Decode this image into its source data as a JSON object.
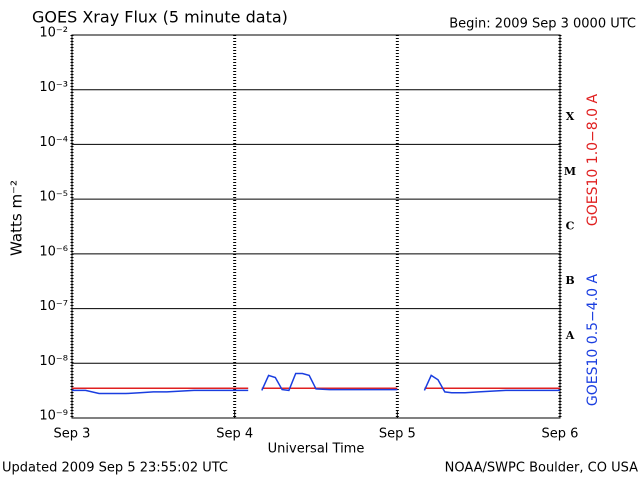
{
  "chart_data": {
    "type": "line",
    "title": "GOES Xray Flux (5 minute data)",
    "subtitle": "Begin:  2009 Sep 3 0000 UTC",
    "y_label": "Watts m⁻²",
    "x_label": "Universal Time",
    "footer_left": "Updated 2009 Sep  5 23:55:02 UTC",
    "footer_right": "NOAA/SWPC Boulder, CO USA",
    "log_y": true,
    "grid": true,
    "flare_class_labels": [
      "X",
      "M",
      "C",
      "B",
      "A"
    ],
    "xlim": [
      0,
      72
    ],
    "xticks": [
      {
        "value": 0,
        "label": "Sep 3"
      },
      {
        "value": 24,
        "label": "Sep 4"
      },
      {
        "value": 48,
        "label": "Sep 5"
      },
      {
        "value": 72,
        "label": "Sep 6"
      }
    ],
    "ylim": [
      1e-09,
      0.01
    ],
    "yticks": [
      {
        "value": 1e-09,
        "label": "10⁻⁹"
      },
      {
        "value": 1e-08,
        "label": "10⁻⁸"
      },
      {
        "value": 1e-07,
        "label": "10⁻⁷"
      },
      {
        "value": 1e-06,
        "label": "10⁻⁶"
      },
      {
        "value": 1e-05,
        "label": "10⁻⁵"
      },
      {
        "value": 0.0001,
        "label": "10⁻⁴"
      },
      {
        "value": 0.001,
        "label": "10⁻³"
      },
      {
        "value": 0.01,
        "label": "10⁻²"
      }
    ],
    "x": [
      0,
      2,
      4,
      6,
      8,
      10,
      12,
      14,
      16,
      18,
      20,
      22,
      24,
      26,
      27,
      28,
      29,
      30,
      31,
      32,
      33,
      34,
      35,
      36,
      38,
      40,
      42,
      44,
      46,
      48,
      49,
      50,
      51,
      52,
      53,
      54,
      55,
      56,
      58,
      60,
      62,
      64,
      66,
      68,
      70,
      72
    ],
    "series": [
      {
        "name": "GOES10 1.0−8.0 A",
        "color": "#e02020",
        "values": [
          3.5e-09,
          3.5e-09,
          3.5e-09,
          3.5e-09,
          3.5e-09,
          3.5e-09,
          3.5e-09,
          3.5e-09,
          3.5e-09,
          3.5e-09,
          3.5e-09,
          3.5e-09,
          3.5e-09,
          3.5e-09,
          null,
          3.5e-09,
          3.5e-09,
          3.5e-09,
          3.5e-09,
          3.5e-09,
          3.5e-09,
          3.5e-09,
          3.5e-09,
          3.5e-09,
          3.5e-09,
          3.5e-09,
          3.5e-09,
          3.5e-09,
          3.5e-09,
          3.5e-09,
          null,
          null,
          null,
          3.5e-09,
          3.5e-09,
          3.5e-09,
          3.5e-09,
          3.5e-09,
          3.5e-09,
          3.5e-09,
          3.5e-09,
          3.5e-09,
          3.5e-09,
          3.5e-09,
          3.5e-09,
          3.5e-09
        ]
      },
      {
        "name": "GOES10 0.5−4.0 A",
        "color": "#1a3ee0",
        "values": [
          3.2e-09,
          3.2e-09,
          2.8e-09,
          2.8e-09,
          2.8e-09,
          2.9e-09,
          3e-09,
          3e-09,
          3.1e-09,
          3.2e-09,
          3.2e-09,
          3.2e-09,
          3.2e-09,
          3.2e-09,
          null,
          3.2e-09,
          6e-09,
          5.5e-09,
          3.3e-09,
          3.2e-09,
          6.5e-09,
          6.5e-09,
          6e-09,
          3.4e-09,
          3.3e-09,
          3.3e-09,
          3.3e-09,
          3.3e-09,
          3.3e-09,
          3.3e-09,
          null,
          null,
          null,
          3.2e-09,
          6e-09,
          5e-09,
          3e-09,
          2.9e-09,
          2.9e-09,
          3e-09,
          3.1e-09,
          3.2e-09,
          3.2e-09,
          3.2e-09,
          3.2e-09,
          3.2e-09
        ]
      }
    ]
  }
}
